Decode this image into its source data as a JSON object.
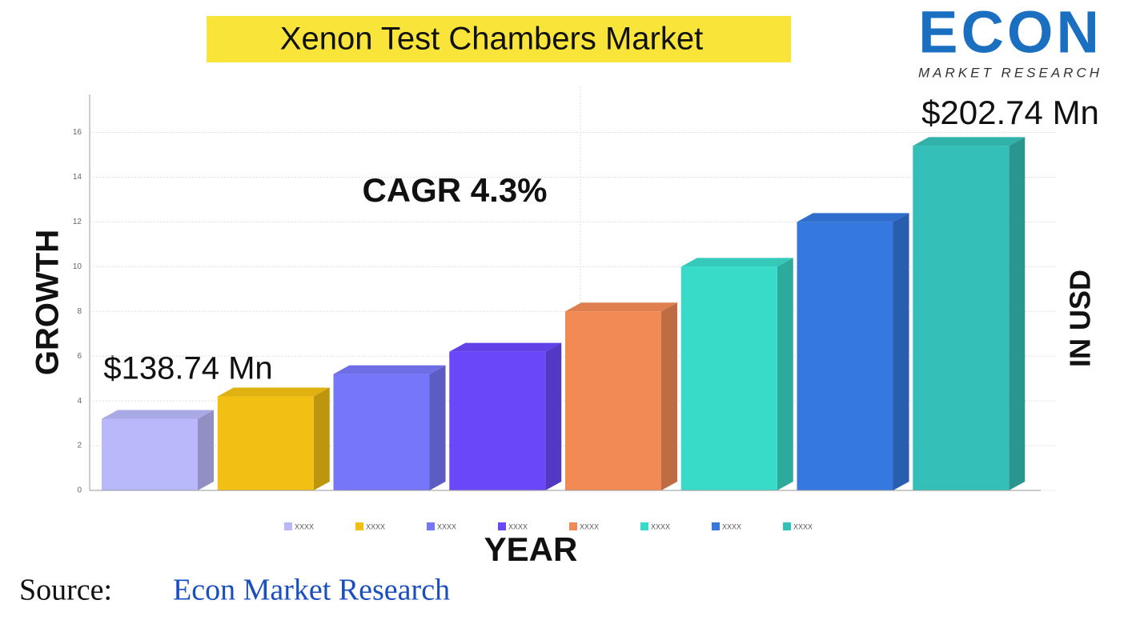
{
  "chart_data": {
    "type": "bar3d",
    "title": "Xenon Test Chambers Market",
    "logo": {
      "brand": "ECON",
      "tagline": "MARKET RESEARCH"
    },
    "categories": [
      "XXXX",
      "XXXX",
      "XXXX",
      "XXXX",
      "XXXX",
      "XXXX",
      "XXXX",
      "XXXX"
    ],
    "values": [
      3.2,
      4.2,
      5.2,
      6.2,
      8,
      10,
      12,
      15.4
    ],
    "colors": [
      "#b8b8fa",
      "#f2c012",
      "#7676fa",
      "#6a48fa",
      "#f28a56",
      "#38dac8",
      "#3478e0",
      "#34c0b8"
    ],
    "ylim": [
      0,
      17.7
    ],
    "yticks": [
      0,
      2,
      4,
      6,
      8,
      10,
      12,
      14,
      16
    ],
    "grid": true,
    "annotations": [
      "$138.74 Mn",
      "$202.74 Mn",
      "CAGR 4.3%"
    ],
    "ylabel": "GROWTH",
    "y2label": "IN USD",
    "xlabel": "YEAR",
    "source": {
      "label": "Source:",
      "name": "Econ Market Research"
    }
  }
}
